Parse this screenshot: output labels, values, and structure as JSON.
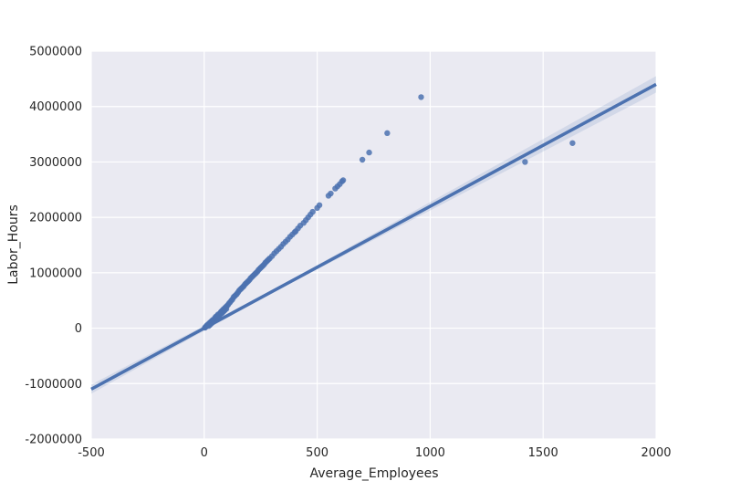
{
  "chart_data": {
    "type": "scatter",
    "title": "",
    "xlabel": "Average_Employees",
    "ylabel": "Labor_Hours",
    "xlim": [
      -500,
      2000
    ],
    "ylim": [
      -2000000,
      5000000
    ],
    "xticks": [
      "-500",
      "0",
      "500",
      "1000",
      "1500",
      "2000"
    ],
    "yticks": [
      "5000000",
      "4000000",
      "3000000",
      "2000000",
      "1000000",
      "0",
      "-1000000",
      "-2000000"
    ],
    "grid": true,
    "colors": {
      "plot_background": "#eaeaf2",
      "grid": "#ffffff",
      "points": "#4c72b0",
      "regression_line": "#4c72b0",
      "confidence_band": "#4c72b0"
    },
    "series": [
      {
        "kind": "points",
        "x": [
          3,
          5,
          8,
          10,
          12,
          15,
          18,
          20,
          22,
          25,
          28,
          30,
          33,
          35,
          38,
          40,
          42,
          45,
          48,
          50,
          52,
          55,
          58,
          60,
          62,
          65,
          68,
          70,
          72,
          75,
          78,
          80,
          82,
          85,
          88,
          90,
          92,
          95,
          98,
          100,
          105,
          110,
          115,
          120,
          125,
          130,
          135,
          140,
          145,
          150,
          155,
          160,
          165,
          170,
          175,
          180,
          185,
          190,
          195,
          200,
          205,
          210,
          215,
          220,
          225,
          230,
          235,
          240,
          245,
          250,
          255,
          260,
          265,
          270,
          275,
          280,
          285,
          290,
          300,
          310,
          320,
          330,
          340,
          350,
          360,
          370,
          380,
          390,
          400,
          405,
          415,
          425,
          440,
          450,
          460,
          470,
          480,
          500,
          510,
          550,
          560,
          580,
          590,
          600,
          610,
          615,
          700,
          730,
          810,
          960,
          1420,
          1630
        ],
        "y": [
          10000,
          15000,
          30000,
          40000,
          50000,
          60000,
          70000,
          40000,
          90000,
          60000,
          110000,
          80000,
          130000,
          100000,
          150000,
          120000,
          140000,
          160000,
          190000,
          150000,
          210000,
          180000,
          230000,
          200000,
          250000,
          220000,
          260000,
          240000,
          280000,
          300000,
          270000,
          320000,
          290000,
          340000,
          310000,
          360000,
          330000,
          380000,
          350000,
          400000,
          420000,
          450000,
          470000,
          500000,
          520000,
          560000,
          580000,
          600000,
          620000,
          650000,
          680000,
          700000,
          720000,
          740000,
          760000,
          790000,
          810000,
          830000,
          850000,
          870000,
          900000,
          920000,
          940000,
          960000,
          980000,
          1000000,
          1020000,
          1050000,
          1070000,
          1090000,
          1110000,
          1130000,
          1150000,
          1180000,
          1200000,
          1220000,
          1240000,
          1260000,
          1300000,
          1350000,
          1390000,
          1430000,
          1470000,
          1520000,
          1560000,
          1600000,
          1650000,
          1690000,
          1730000,
          1750000,
          1800000,
          1850000,
          1900000,
          1950000,
          2000000,
          2050000,
          2100000,
          2170000,
          2220000,
          2390000,
          2430000,
          2520000,
          2560000,
          2600000,
          2650000,
          2670000,
          3040000,
          3170000,
          3520000,
          4170000,
          3000000,
          3340000
        ]
      },
      {
        "kind": "regression",
        "x": [
          -500,
          2000
        ],
        "y": [
          -1100000,
          4400000
        ]
      }
    ]
  }
}
